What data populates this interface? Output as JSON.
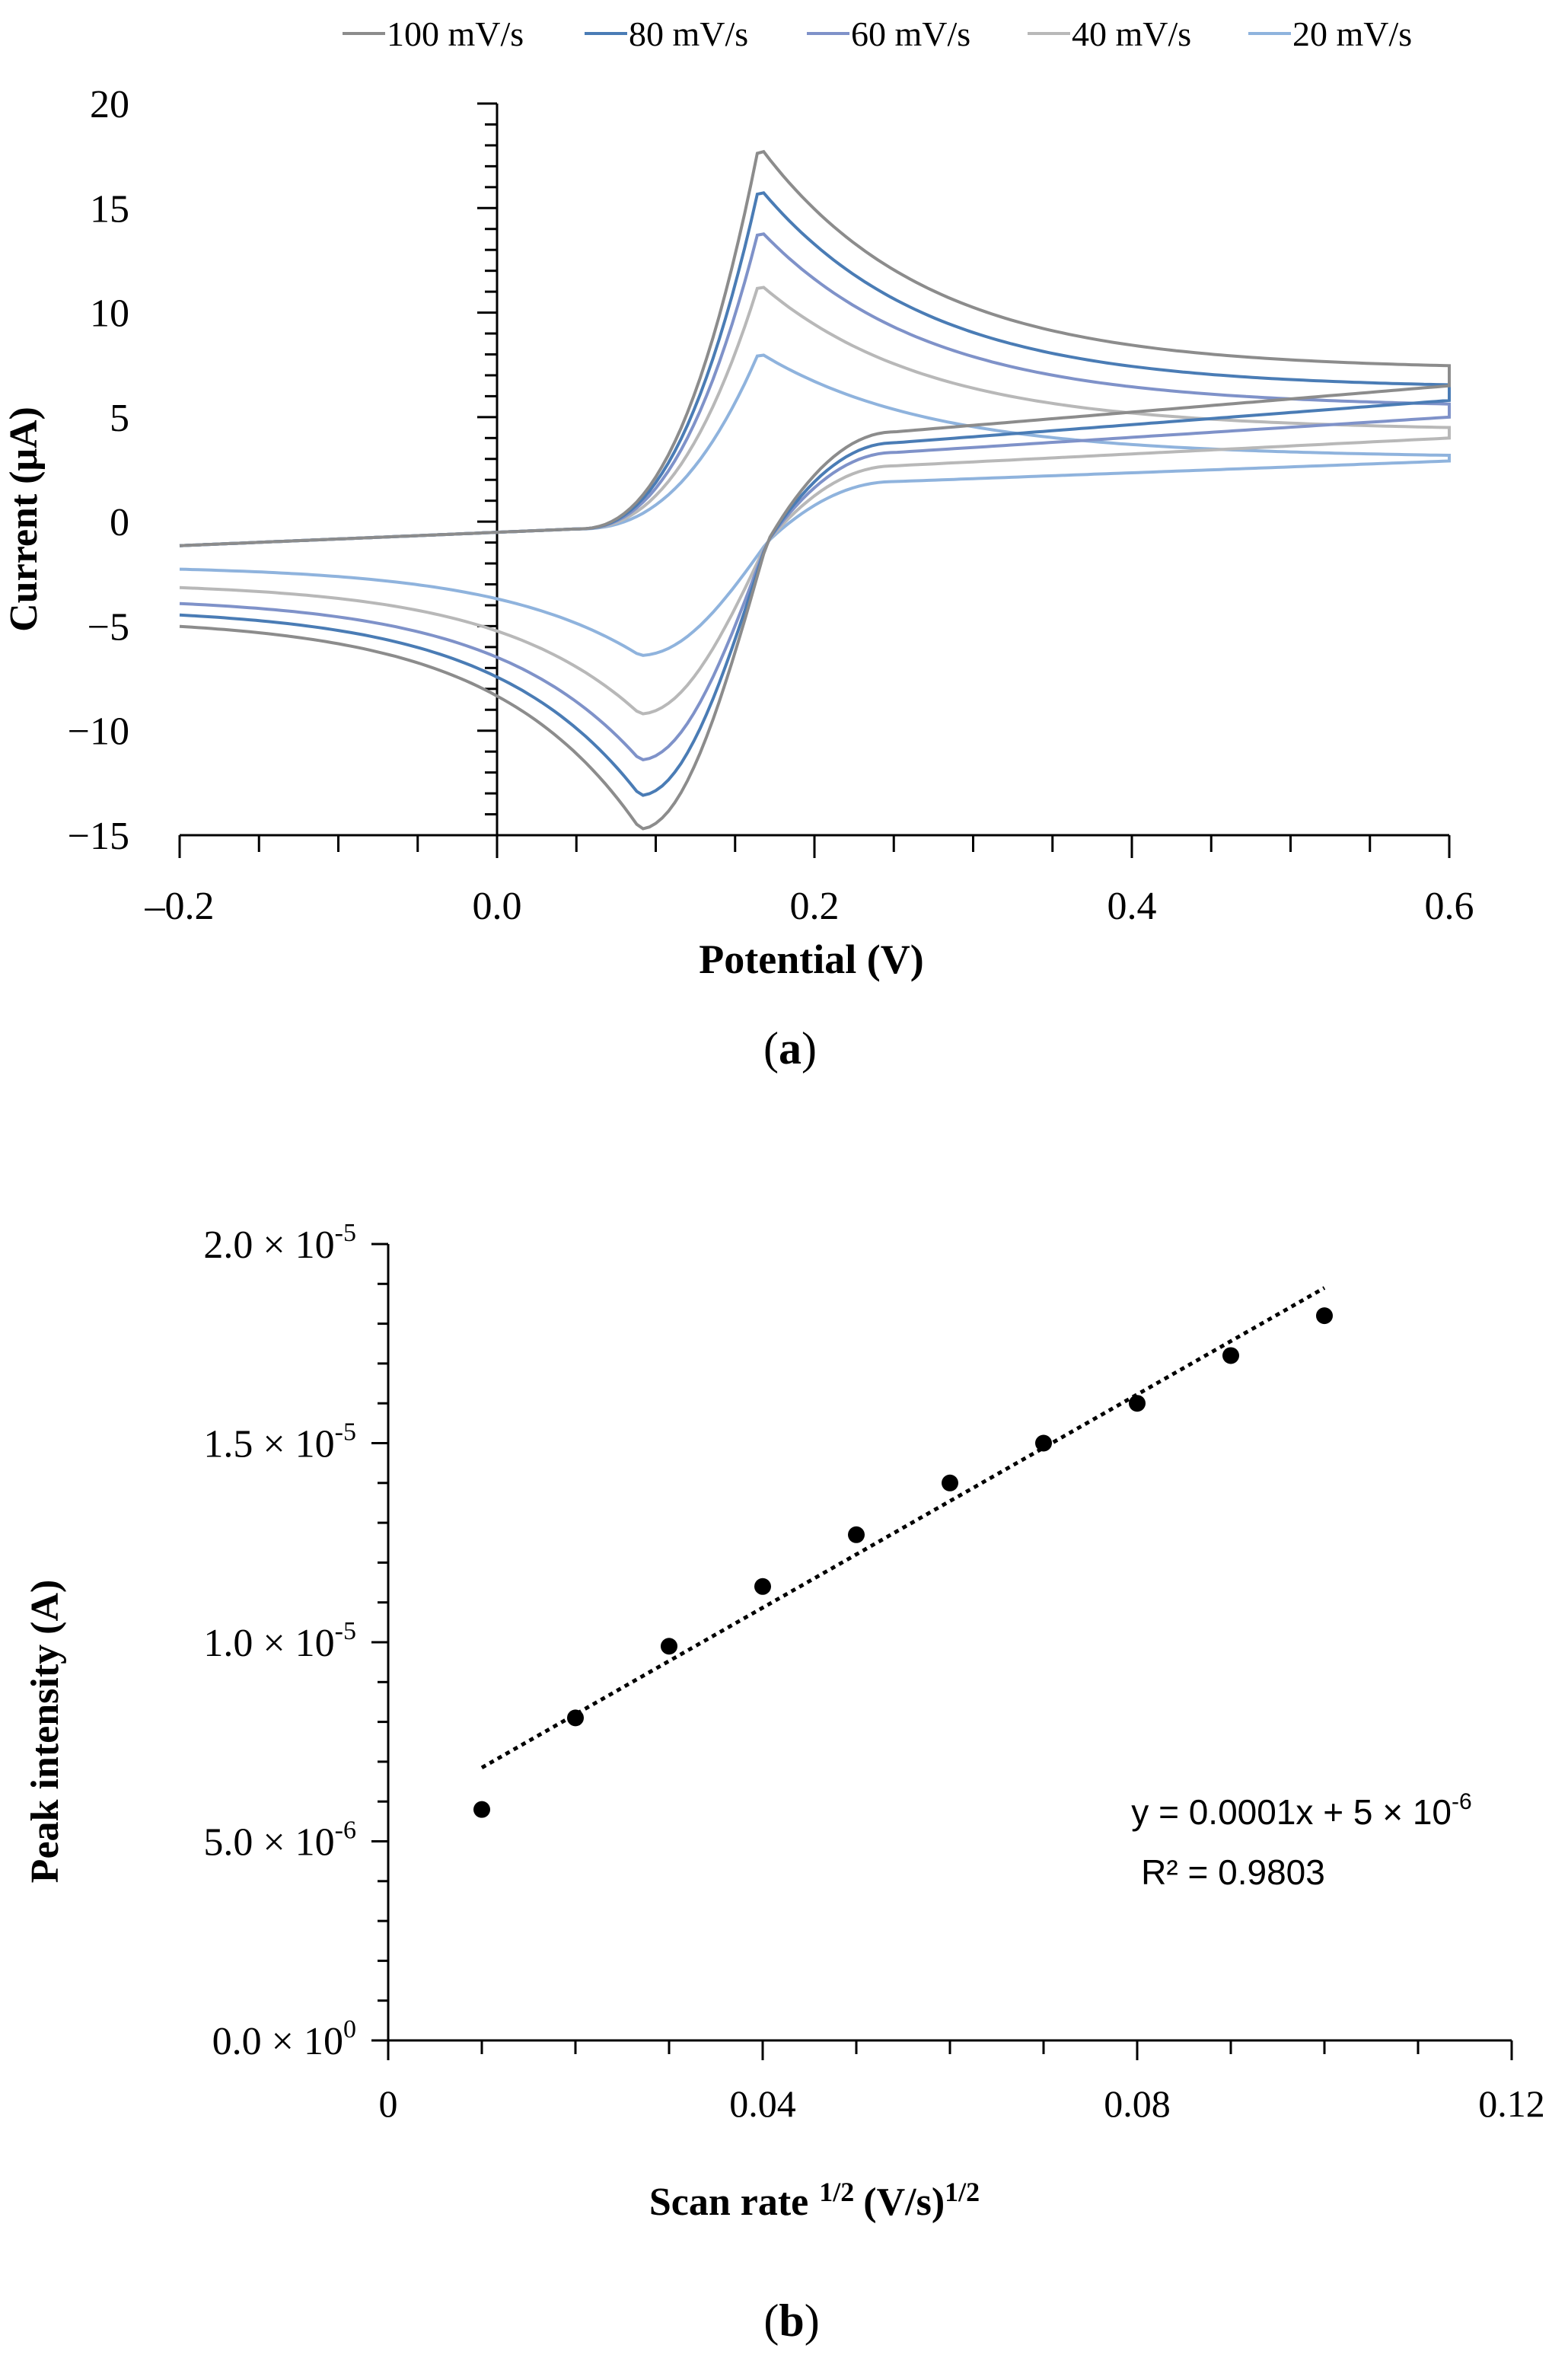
{
  "chart_data": [
    {
      "type": "line",
      "panel_label": "(a)",
      "panel_label_letter": "a",
      "xlabel": "Potential (V)",
      "ylabel": "Current (μA)",
      "xlim": [
        -0.2,
        0.6
      ],
      "ylim": [
        -15,
        20
      ],
      "xticks": [
        -0.2,
        0.0,
        0.2,
        0.4,
        0.6
      ],
      "xtick_labels": [
        "–0.2",
        "0.0",
        "0.2",
        "0.4",
        "0.6"
      ],
      "yticks": [
        20,
        15,
        10,
        5,
        0,
        -5,
        -10,
        -15
      ],
      "ytick_labels": [
        "20",
        "15",
        "10",
        "5",
        "0",
        "−5",
        "−10",
        "−15"
      ],
      "grid": false,
      "legend_position": "top",
      "series": [
        {
          "name": "100 mV/s",
          "color": "#8c8c8c",
          "ipa": 18.0,
          "ipc": -14.7,
          "plateau_anodic": 7.4,
          "end_anodic": 7.3,
          "cathodic_return_end": 6.5,
          "start_cathodic": -4.6
        },
        {
          "name": "80 mV/s",
          "color": "#4a7cb5",
          "ipa": 16.0,
          "ipc": -13.1,
          "plateau_anodic": 6.5,
          "end_anodic": 6.4,
          "cathodic_return_end": 5.8,
          "start_cathodic": -4.1
        },
        {
          "name": "60 mV/s",
          "color": "#7f92c9",
          "ipa": 14.0,
          "ipc": -11.4,
          "plateau_anodic": 5.7,
          "end_anodic": 5.5,
          "cathodic_return_end": 5.0,
          "start_cathodic": -3.6
        },
        {
          "name": "40 mV/s",
          "color": "#b8b8b8",
          "ipa": 11.4,
          "ipc": -9.2,
          "plateau_anodic": 4.6,
          "end_anodic": 4.4,
          "cathodic_return_end": 4.0,
          "start_cathodic": -2.9
        },
        {
          "name": "20 mV/s",
          "color": "#8fb3dd",
          "ipa": 8.1,
          "ipc": -6.4,
          "plateau_anodic": 3.3,
          "end_anodic": 3.1,
          "cathodic_return_end": 2.9,
          "start_cathodic": -2.1
        }
      ]
    },
    {
      "type": "scatter",
      "panel_label": "(b)",
      "panel_label_letter": "b",
      "xlabel": "Scan rate",
      "xlabel_sup1": "1/2",
      "xlabel_units": "(V/s)",
      "xlabel_sup2": "1/2",
      "ylabel": "Peak intensity  (A)",
      "xlim": [
        0,
        0.12
      ],
      "ylim": [
        0,
        2e-05
      ],
      "xticks": [
        0,
        0.04,
        0.08,
        0.12
      ],
      "xtick_labels": [
        "0",
        "0.04",
        "0.08",
        "0.12"
      ],
      "yticks": [
        2e-05,
        1.5e-05,
        1e-05,
        5e-06,
        0
      ],
      "ytick_labels": [
        {
          "mantissa": "2.0",
          "times": "×",
          "base": "10",
          "exp": "-5"
        },
        {
          "mantissa": "1.5",
          "times": "×",
          "base": "10",
          "exp": "-5"
        },
        {
          "mantissa": "1.0",
          "times": "×",
          "base": "10",
          "exp": "-5"
        },
        {
          "mantissa": "5.0",
          "times": "×",
          "base": "10",
          "exp": "-6"
        },
        {
          "mantissa": "0.0",
          "times": "×",
          "base": "10",
          "exp": "0"
        }
      ],
      "grid": false,
      "points": {
        "x": [
          0.01,
          0.02,
          0.03,
          0.04,
          0.05,
          0.06,
          0.07,
          0.08,
          0.09,
          0.1
        ],
        "y": [
          5.8e-06,
          8.1e-06,
          9.9e-06,
          1.14e-05,
          1.27e-05,
          1.4e-05,
          1.5e-05,
          1.6e-05,
          1.72e-05,
          1.82e-05
        ]
      },
      "trendline": {
        "x_start": 0.01,
        "x_end": 0.1,
        "y_start": 6.85e-06,
        "y_end": 1.89e-05
      },
      "equation": {
        "prefix": "y = 0.0001x + 5 × 10",
        "exp": "-6"
      },
      "r_squared": "R² = 0.9803"
    }
  ]
}
